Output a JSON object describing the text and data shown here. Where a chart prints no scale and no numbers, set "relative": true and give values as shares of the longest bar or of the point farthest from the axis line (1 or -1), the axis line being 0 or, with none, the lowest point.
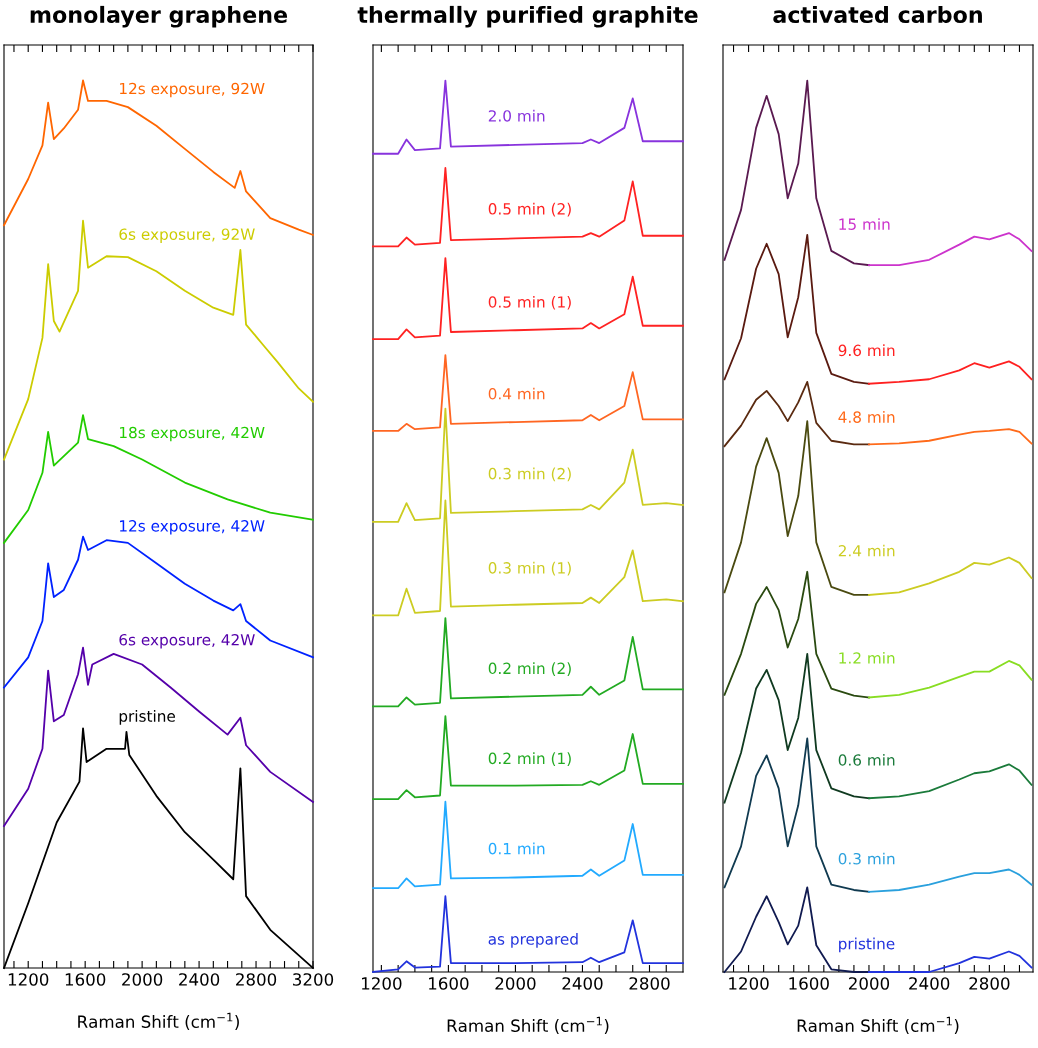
{
  "chart_data": [
    {
      "type": "line",
      "title": "monolayer graphene",
      "xlabel": "Raman Shift (cm$^{−1}$)",
      "relative": true,
      "xlim": [
        1030,
        3200
      ],
      "xticks": [
        {
          "value": 1100,
          "label": null
        },
        1200,
        {
          "value": 1300,
          "label": null
        },
        {
          "value": 1400,
          "label": null
        },
        {
          "value": 1500,
          "label": null
        },
        1600,
        {
          "value": 1700,
          "label": null
        },
        {
          "value": 1800,
          "label": null
        },
        {
          "value": 1900,
          "label": null
        },
        2000,
        {
          "value": 2100,
          "label": null
        },
        {
          "value": 2200,
          "label": null
        },
        {
          "value": 2300,
          "label": null
        },
        2400,
        {
          "value": 2500,
          "label": null
        },
        {
          "value": 2600,
          "label": null
        },
        {
          "value": 2700,
          "label": null
        },
        2800,
        {
          "value": 2900,
          "label": null
        },
        {
          "value": 3000,
          "label": null
        },
        {
          "value": 3100,
          "label": null
        },
        3200
      ],
      "series": [
        {
          "name": "12s exposure, 92W",
          "color": "#ff6600",
          "x": [
            1030,
            1200,
            1300,
            1340,
            1380,
            1450,
            1550,
            1585,
            1620,
            1750,
            1900,
            2100,
            2300,
            2500,
            2650,
            2690,
            2730,
            2900,
            3100,
            3200
          ],
          "values": [
            0.837,
            0.889,
            0.927,
            0.975,
            0.934,
            0.946,
            0.967,
            1.0,
            0.977,
            0.977,
            0.97,
            0.949,
            0.923,
            0.897,
            0.879,
            0.898,
            0.875,
            0.845,
            0.832,
            0.826
          ]
        },
        {
          "name": "6s exposure, 92W",
          "color": "#cccc00",
          "x": [
            1030,
            1200,
            1300,
            1340,
            1380,
            1420,
            1550,
            1585,
            1620,
            1750,
            1900,
            2100,
            2300,
            2500,
            2640,
            2690,
            2730,
            2850,
            2950,
            3100,
            3200
          ],
          "values": [
            0.573,
            0.641,
            0.71,
            0.793,
            0.729,
            0.717,
            0.763,
            0.842,
            0.789,
            0.802,
            0.801,
            0.785,
            0.763,
            0.744,
            0.736,
            0.809,
            0.725,
            0.702,
            0.683,
            0.653,
            0.638
          ]
        },
        {
          "name": "18s exposure, 42W",
          "color": "#22cc00",
          "x": [
            1030,
            1200,
            1300,
            1340,
            1380,
            1550,
            1585,
            1620,
            1800,
            2000,
            2300,
            2600,
            2900,
            3200
          ],
          "values": [
            0.479,
            0.516,
            0.558,
            0.604,
            0.566,
            0.592,
            0.623,
            0.596,
            0.588,
            0.573,
            0.547,
            0.528,
            0.513,
            0.505
          ]
        },
        {
          "name": "12s exposure, 42W",
          "color": "#0022ff",
          "x": [
            1030,
            1200,
            1300,
            1340,
            1380,
            1450,
            1550,
            1585,
            1620,
            1750,
            1900,
            2100,
            2300,
            2500,
            2640,
            2690,
            2730,
            2900,
            3200
          ],
          "values": [
            0.316,
            0.35,
            0.391,
            0.456,
            0.418,
            0.426,
            0.46,
            0.486,
            0.471,
            0.482,
            0.479,
            0.456,
            0.433,
            0.414,
            0.403,
            0.41,
            0.391,
            0.369,
            0.35
          ]
        },
        {
          "name": "6s exposure, 42W",
          "color": "#5500aa",
          "x": [
            1030,
            1200,
            1300,
            1340,
            1380,
            1450,
            1550,
            1585,
            1620,
            1650,
            1800,
            2000,
            2200,
            2400,
            2600,
            2690,
            2730,
            2900,
            3200
          ],
          "values": [
            0.16,
            0.202,
            0.247,
            0.335,
            0.278,
            0.285,
            0.331,
            0.361,
            0.319,
            0.342,
            0.354,
            0.342,
            0.316,
            0.289,
            0.263,
            0.282,
            0.251,
            0.221,
            0.187
          ]
        },
        {
          "name": "pristine",
          "color": "#000000",
          "x": [
            1030,
            1200,
            1400,
            1560,
            1585,
            1610,
            1750,
            1880,
            1890,
            1910,
            2100,
            2300,
            2500,
            2640,
            2690,
            2730,
            2900,
            3200
          ],
          "values": [
            0.0,
            0.073,
            0.164,
            0.21,
            0.27,
            0.232,
            0.247,
            0.247,
            0.266,
            0.24,
            0.194,
            0.153,
            0.122,
            0.1,
            0.225,
            0.081,
            0.043,
            0.0
          ]
        }
      ]
    },
    {
      "type": "line",
      "title": "thermally purified graphite",
      "xlabel": "Raman Shift (cm$^{−1}$)",
      "relative": true,
      "xlim": [
        1150,
        3000
      ],
      "xticks": [
        1200,
        {
          "value": 1300,
          "label": null
        },
        {
          "value": 1400,
          "label": null
        },
        {
          "value": 1500,
          "label": null
        },
        1600,
        {
          "value": 1700,
          "label": null
        },
        {
          "value": 1800,
          "label": null
        },
        {
          "value": 1900,
          "label": null
        },
        2000,
        {
          "value": 2100,
          "label": null
        },
        {
          "value": 2200,
          "label": null
        },
        {
          "value": 2300,
          "label": null
        },
        2400,
        {
          "value": 2500,
          "label": null
        },
        {
          "value": 2600,
          "label": null
        },
        {
          "value": 2700,
          "label": null
        },
        2800,
        {
          "value": 2900,
          "label": null
        }
      ],
      "series": [
        {
          "name": "2.0 min",
          "color": "#8833dd",
          "x": [
            1150,
            1300,
            1350,
            1400,
            1550,
            1582,
            1615,
            2000,
            2400,
            2450,
            2500,
            2650,
            2700,
            2760,
            2900,
            3000
          ],
          "values": [
            0.918,
            0.918,
            0.934,
            0.922,
            0.924,
            1.0,
            0.926,
            0.928,
            0.93,
            0.934,
            0.93,
            0.947,
            0.98,
            0.932,
            0.932,
            0.932
          ]
        },
        {
          "name": "0.5 min (2)",
          "color": "#ff2222",
          "x": [
            1150,
            1300,
            1350,
            1400,
            1550,
            1582,
            1615,
            2000,
            2400,
            2450,
            2500,
            2650,
            2700,
            2760,
            2900,
            3000
          ],
          "values": [
            0.814,
            0.814,
            0.824,
            0.816,
            0.818,
            0.902,
            0.821,
            0.823,
            0.825,
            0.829,
            0.825,
            0.843,
            0.887,
            0.826,
            0.826,
            0.826
          ]
        },
        {
          "name": "0.5 min (1)",
          "color": "#ff2222",
          "x": [
            1150,
            1300,
            1350,
            1400,
            1550,
            1582,
            1615,
            2000,
            2400,
            2450,
            2500,
            2650,
            2700,
            2760,
            2900,
            3000
          ],
          "values": [
            0.71,
            0.71,
            0.721,
            0.712,
            0.714,
            0.801,
            0.718,
            0.72,
            0.722,
            0.728,
            0.722,
            0.738,
            0.78,
            0.725,
            0.725,
            0.725
          ]
        },
        {
          "name": "0.4 min",
          "color": "#ff6622",
          "x": [
            1150,
            1300,
            1350,
            1400,
            1550,
            1582,
            1615,
            2000,
            2400,
            2450,
            2500,
            2650,
            2700,
            2760,
            2900,
            3000
          ],
          "values": [
            0.607,
            0.607,
            0.615,
            0.609,
            0.611,
            0.692,
            0.615,
            0.617,
            0.619,
            0.625,
            0.619,
            0.635,
            0.673,
            0.62,
            0.62,
            0.62
          ]
        },
        {
          "name": "0.3 min (2)",
          "color": "#cccc22",
          "x": [
            1150,
            1300,
            1350,
            1400,
            1550,
            1582,
            1615,
            2000,
            2400,
            2450,
            2500,
            2650,
            2700,
            2760,
            2900,
            3000
          ],
          "values": [
            0.505,
            0.505,
            0.526,
            0.507,
            0.509,
            0.632,
            0.515,
            0.517,
            0.519,
            0.524,
            0.519,
            0.549,
            0.586,
            0.524,
            0.526,
            0.524
          ]
        },
        {
          "name": "0.3 min (1)",
          "color": "#cccc22",
          "x": [
            1150,
            1300,
            1350,
            1400,
            1550,
            1582,
            1615,
            2000,
            2400,
            2450,
            2500,
            2650,
            2700,
            2760,
            2900,
            3000
          ],
          "values": [
            0.4,
            0.4,
            0.43,
            0.403,
            0.405,
            0.529,
            0.41,
            0.412,
            0.414,
            0.42,
            0.414,
            0.443,
            0.473,
            0.416,
            0.418,
            0.416
          ]
        },
        {
          "name": "0.2 min (2)",
          "color": "#22aa22",
          "x": [
            1150,
            1300,
            1350,
            1400,
            1550,
            1582,
            1615,
            2000,
            2400,
            2450,
            2500,
            2650,
            2700,
            2760,
            2900,
            3000
          ],
          "values": [
            0.298,
            0.298,
            0.308,
            0.3,
            0.302,
            0.397,
            0.307,
            0.309,
            0.311,
            0.32,
            0.311,
            0.327,
            0.376,
            0.317,
            0.317,
            0.317
          ]
        },
        {
          "name": "0.2 min (1)",
          "color": "#22aa22",
          "x": [
            1150,
            1300,
            1350,
            1400,
            1550,
            1582,
            1615,
            2000,
            2400,
            2450,
            2500,
            2650,
            2700,
            2760,
            2900,
            3000
          ],
          "values": [
            0.194,
            0.194,
            0.204,
            0.196,
            0.198,
            0.287,
            0.209,
            0.209,
            0.21,
            0.214,
            0.21,
            0.226,
            0.267,
            0.211,
            0.211,
            0.211
          ]
        },
        {
          "name": "0.1 min",
          "color": "#22aaff",
          "x": [
            1150,
            1300,
            1350,
            1400,
            1550,
            1582,
            1615,
            2000,
            2400,
            2450,
            2500,
            2650,
            2700,
            2760,
            2900,
            3000
          ],
          "values": [
            0.094,
            0.094,
            0.105,
            0.096,
            0.098,
            0.191,
            0.105,
            0.106,
            0.108,
            0.115,
            0.108,
            0.125,
            0.166,
            0.109,
            0.109,
            0.109
          ]
        },
        {
          "name": "as prepared",
          "color": "#2233dd",
          "x": [
            1150,
            1300,
            1350,
            1400,
            1550,
            1582,
            1615,
            2000,
            2400,
            2450,
            2500,
            2650,
            2700,
            2760,
            2900,
            3000
          ],
          "values": [
            0.0,
            0.003,
            0.012,
            0.005,
            0.006,
            0.085,
            0.01,
            0.01,
            0.011,
            0.016,
            0.011,
            0.022,
            0.058,
            0.01,
            0.01,
            0.01
          ]
        }
      ]
    },
    {
      "type": "line",
      "title": "activated carbon",
      "xlabel": "Raman Shift (cm$^{−1}$)",
      "relative": true,
      "xlim": [
        1030,
        3090
      ],
      "xticks": [
        {
          "value": 1100,
          "label": null
        },
        1200,
        {
          "value": 1300,
          "label": null
        },
        {
          "value": 1400,
          "label": null
        },
        {
          "value": 1500,
          "label": null
        },
        1600,
        {
          "value": 1700,
          "label": null
        },
        {
          "value": 1800,
          "label": null
        },
        {
          "value": 1900,
          "label": null
        },
        2000,
        {
          "value": 2100,
          "label": null
        },
        {
          "value": 2200,
          "label": null
        },
        {
          "value": 2300,
          "label": null
        },
        2400,
        {
          "value": 2500,
          "label": null
        },
        {
          "value": 2600,
          "label": null
        },
        {
          "value": 2700,
          "label": null
        },
        2800,
        {
          "value": 2900,
          "label": null
        },
        {
          "value": 3000,
          "label": null
        }
      ],
      "series": [
        {
          "color": "#5a1a50",
          "x": [
            1040,
            1150,
            1250,
            1320,
            1400,
            1460,
            1530,
            1590,
            1650,
            1750,
            1900,
            2000
          ],
          "values": [
            0.799,
            0.855,
            0.947,
            0.983,
            0.94,
            0.868,
            0.907,
            1.0,
            0.868,
            0.809,
            0.795,
            0.793
          ]
        },
        {
          "name": "15 min",
          "color": "#cc33cc",
          "x": [
            2000,
            2200,
            2400,
            2600,
            2700,
            2800,
            2930,
            3000,
            3080
          ],
          "values": [
            0.793,
            0.793,
            0.799,
            0.816,
            0.825,
            0.822,
            0.829,
            0.822,
            0.809
          ]
        },
        {
          "color": "#5a1a10",
          "x": [
            1040,
            1150,
            1250,
            1320,
            1400,
            1460,
            1530,
            1590,
            1650,
            1750,
            1900,
            2000
          ],
          "values": [
            0.665,
            0.711,
            0.789,
            0.817,
            0.783,
            0.712,
            0.757,
            0.827,
            0.717,
            0.671,
            0.662,
            0.66
          ]
        },
        {
          "name": "9.6 min",
          "color": "#ff2020",
          "x": [
            2000,
            2200,
            2400,
            2600,
            2700,
            2800,
            2930,
            3000,
            3080
          ],
          "values": [
            0.66,
            0.662,
            0.665,
            0.675,
            0.683,
            0.678,
            0.685,
            0.679,
            0.665
          ]
        },
        {
          "color": "#5a2a10",
          "x": [
            1040,
            1150,
            1250,
            1320,
            1400,
            1460,
            1530,
            1590,
            1650,
            1750,
            1900,
            2000
          ],
          "values": [
            0.59,
            0.613,
            0.642,
            0.652,
            0.635,
            0.618,
            0.639,
            0.662,
            0.616,
            0.596,
            0.592,
            0.592
          ]
        },
        {
          "name": "4.8 min",
          "color": "#ff6a1a",
          "x": [
            2000,
            2200,
            2400,
            2600,
            2700,
            2800,
            2930,
            3000,
            3080
          ],
          "values": [
            0.592,
            0.593,
            0.596,
            0.603,
            0.606,
            0.607,
            0.609,
            0.606,
            0.593
          ]
        },
        {
          "color": "#4a4a10",
          "x": [
            1040,
            1150,
            1250,
            1320,
            1400,
            1460,
            1530,
            1590,
            1650,
            1750,
            1900,
            2000
          ],
          "values": [
            0.426,
            0.482,
            0.567,
            0.599,
            0.56,
            0.489,
            0.534,
            0.618,
            0.482,
            0.432,
            0.423,
            0.423
          ]
        },
        {
          "name": "2.4 min",
          "color": "#cccc22",
          "x": [
            2000,
            2200,
            2400,
            2600,
            2700,
            2800,
            2930,
            3000,
            3080
          ],
          "values": [
            0.423,
            0.426,
            0.436,
            0.449,
            0.459,
            0.457,
            0.465,
            0.459,
            0.442
          ]
        },
        {
          "color": "#2a4a10",
          "x": [
            1040,
            1150,
            1250,
            1320,
            1400,
            1460,
            1530,
            1590,
            1650,
            1750,
            1900,
            2000
          ],
          "values": [
            0.311,
            0.357,
            0.413,
            0.432,
            0.406,
            0.364,
            0.396,
            0.449,
            0.357,
            0.318,
            0.31,
            0.308
          ]
        },
        {
          "name": "1.2 min",
          "color": "#88dd22",
          "x": [
            2000,
            2200,
            2400,
            2600,
            2700,
            2800,
            2930,
            3000,
            3080
          ],
          "values": [
            0.308,
            0.311,
            0.319,
            0.331,
            0.337,
            0.337,
            0.349,
            0.344,
            0.328
          ]
        },
        {
          "color": "#103a20",
          "x": [
            1040,
            1150,
            1250,
            1320,
            1400,
            1460,
            1530,
            1590,
            1650,
            1750,
            1900,
            2000
          ],
          "values": [
            0.19,
            0.246,
            0.318,
            0.339,
            0.305,
            0.249,
            0.285,
            0.357,
            0.249,
            0.206,
            0.197,
            0.195
          ]
        },
        {
          "name": "0.6 min",
          "color": "#1a7a3a",
          "x": [
            2000,
            2200,
            2400,
            2600,
            2700,
            2800,
            2930,
            3000,
            3080
          ],
          "values": [
            0.195,
            0.197,
            0.203,
            0.216,
            0.223,
            0.225,
            0.233,
            0.226,
            0.21
          ]
        },
        {
          "color": "#103a50",
          "x": [
            1040,
            1150,
            1250,
            1320,
            1400,
            1460,
            1530,
            1590,
            1650,
            1750,
            1900,
            2000
          ],
          "values": [
            0.095,
            0.141,
            0.22,
            0.243,
            0.206,
            0.141,
            0.187,
            0.262,
            0.141,
            0.098,
            0.092,
            0.09
          ]
        },
        {
          "name": "0.3 min",
          "color": "#2aa0dd",
          "x": [
            2000,
            2200,
            2400,
            2600,
            2700,
            2800,
            2930,
            3000,
            3080
          ],
          "values": [
            0.09,
            0.092,
            0.098,
            0.107,
            0.111,
            0.111,
            0.115,
            0.109,
            0.098
          ]
        },
        {
          "color": "#101a50",
          "x": [
            1040,
            1150,
            1250,
            1320,
            1400,
            1460,
            1530,
            1590,
            1650,
            1750,
            1900,
            2000
          ],
          "values": [
            0.0,
            0.023,
            0.062,
            0.085,
            0.056,
            0.031,
            0.052,
            0.095,
            0.03,
            0.003,
            0.0,
            0.0
          ]
        },
        {
          "name": "pristine",
          "color": "#2233dd",
          "x": [
            2000,
            2200,
            2400,
            2600,
            2700,
            2800,
            2930,
            3000,
            3080
          ],
          "values": [
            0.0,
            0.0,
            0.0,
            0.01,
            0.017,
            0.015,
            0.023,
            0.018,
            0.005
          ]
        }
      ]
    }
  ]
}
